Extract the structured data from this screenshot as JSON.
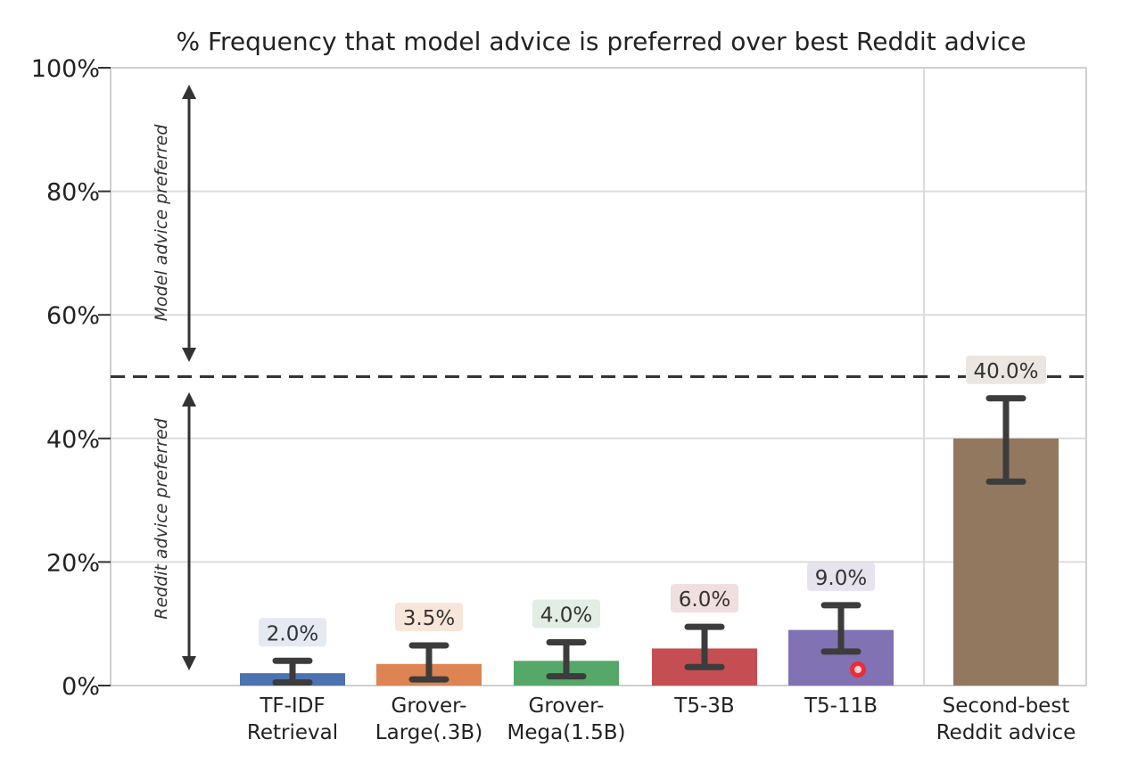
{
  "chart_data": {
    "type": "bar",
    "title": "% Frequency that model advice is preferred over best Reddit advice",
    "xlabel": "",
    "ylabel": "",
    "ylim": [
      0,
      100
    ],
    "y_ticks": [
      "0%",
      "20%",
      "40%",
      "60%",
      "80%",
      "100%"
    ],
    "y_tick_values": [
      0,
      20,
      40,
      60,
      80,
      100
    ],
    "grid": true,
    "reference_line": 50,
    "categories": [
      [
        "TF-IDF",
        "Retrieval"
      ],
      [
        "Grover-",
        "Large(.3B)"
      ],
      [
        "Grover-",
        "Mega(1.5B)"
      ],
      [
        "T5-3B"
      ],
      [
        "T5-11B"
      ],
      [
        "Second-best",
        "Reddit advice"
      ]
    ],
    "values": [
      2.0,
      3.5,
      4.0,
      6.0,
      9.0,
      40.0
    ],
    "data_labels": [
      "2.0%",
      "3.5%",
      "4.0%",
      "6.0%",
      "9.0%",
      "40.0%"
    ],
    "error_low": [
      0.5,
      1.0,
      1.5,
      3.0,
      5.5,
      33.0
    ],
    "error_high": [
      4.0,
      6.5,
      7.0,
      9.5,
      13.0,
      46.5
    ],
    "colors": [
      "#4c72b0",
      "#dd8452",
      "#55a868",
      "#c44e52",
      "#8172b3",
      "#937860"
    ],
    "label_bg_colors": [
      "#e4e9f2",
      "#f8e6da",
      "#e2ede4",
      "#f1dedf",
      "#e6e3ef",
      "#ebe6e1"
    ],
    "region_labels": {
      "upper": "Model advice preferred",
      "lower": "Reddit advice preferred"
    }
  }
}
